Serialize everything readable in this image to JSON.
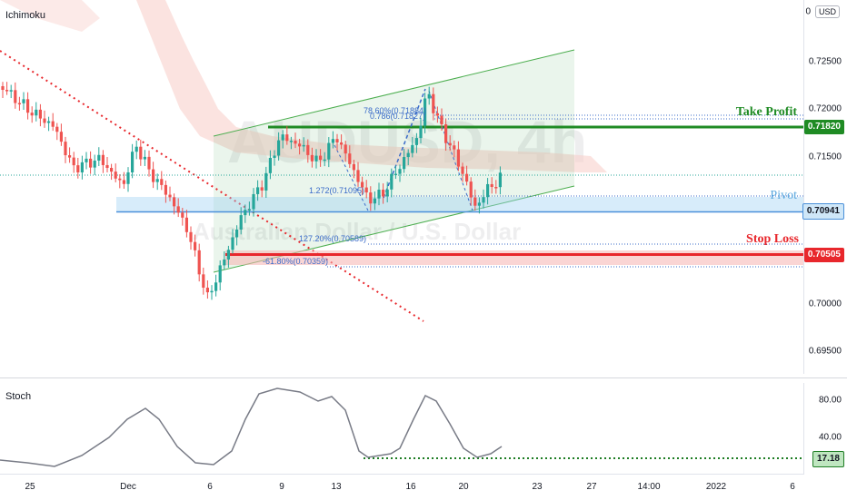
{
  "chart": {
    "indicator_label": "Ichimoku",
    "currency_badge": "USD",
    "watermark_symbol": "AUDUSD, 4h",
    "watermark_name": "Australian Dollar / U.S. Dollar",
    "price_ticks": [
      "0.72500",
      "0.72000",
      "0.71500",
      "0.70000",
      "0.69500"
    ],
    "partial_tick_top": "0",
    "levels": {
      "take_profit": {
        "label": "Take Profit",
        "value": "0.71820",
        "color": "#1f8b24"
      },
      "pivot": {
        "label": "Pivot",
        "value": "0.70941",
        "color": "#4a90d9"
      },
      "stop_loss": {
        "label": "Stop Loss",
        "value": "0.70505",
        "color": "#e8272c"
      }
    },
    "fib_annotations": [
      "78.60%(0.71884)",
      "0.786(0.71827)",
      "1.272(0.71095)",
      "127.20%(0.70589)",
      "-61.80%(0.70359)"
    ],
    "trend": {
      "up_color": "#26a69a",
      "down_color": "#ef5350"
    }
  },
  "stoch": {
    "label": "Stoch",
    "ticks": [
      "80.00",
      "40.00"
    ],
    "current_value": "17.18"
  },
  "time_axis": [
    "25",
    "Dec",
    "6",
    "9",
    "13",
    "16",
    "20",
    "23",
    "27",
    "14:00",
    "2022",
    "6"
  ]
}
